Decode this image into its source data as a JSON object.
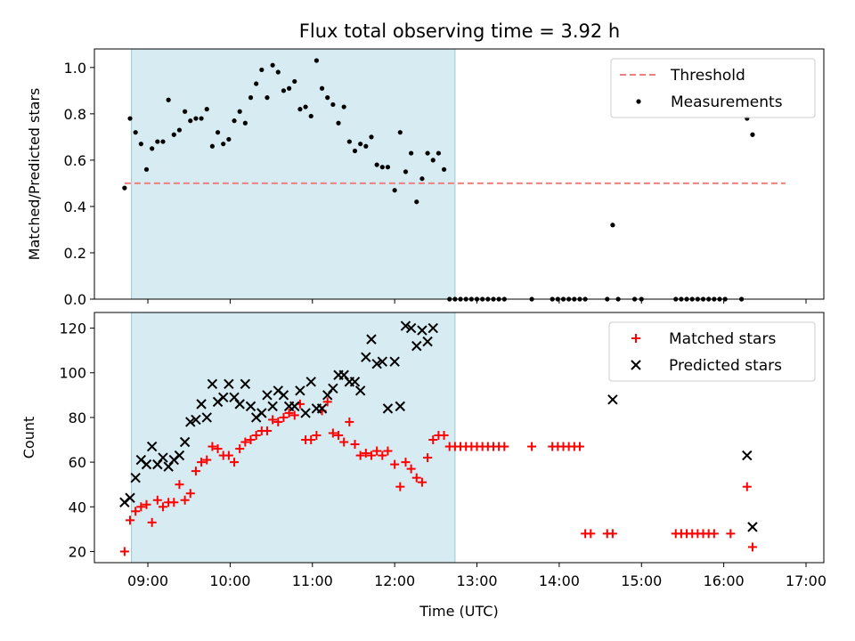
{
  "chart_data": [
    {
      "type": "scatter",
      "title": "Flux total observing time = 3.92 h",
      "xlabel": "",
      "ylabel": "Matched/Predicted stars",
      "ylim": [
        0,
        1.08
      ],
      "yticks": [
        "0.0",
        "0.2",
        "0.4",
        "0.6",
        "0.8",
        "1.0"
      ],
      "legend": "top-right",
      "shaded_interval": [
        "08:48",
        "12:44"
      ],
      "threshold": {
        "name": "Threshold",
        "value": 0.5,
        "x_range": [
          "08:43",
          "16:45"
        ],
        "color": "#f08080"
      },
      "series": [
        {
          "name": "Measurements",
          "color": "#000000",
          "points": [
            [
              "08:43",
              0.48
            ],
            [
              "08:47",
              0.78
            ],
            [
              "08:51",
              0.72
            ],
            [
              "08:55",
              0.67
            ],
            [
              "08:59",
              0.56
            ],
            [
              "09:03",
              0.65
            ],
            [
              "09:07",
              0.68
            ],
            [
              "09:11",
              0.68
            ],
            [
              "09:15",
              0.86
            ],
            [
              "09:19",
              0.71
            ],
            [
              "09:23",
              0.73
            ],
            [
              "09:27",
              0.81
            ],
            [
              "09:31",
              0.77
            ],
            [
              "09:35",
              0.78
            ],
            [
              "09:39",
              0.78
            ],
            [
              "09:43",
              0.82
            ],
            [
              "09:47",
              0.66
            ],
            [
              "09:51",
              0.72
            ],
            [
              "09:55",
              0.67
            ],
            [
              "09:59",
              0.69
            ],
            [
              "10:03",
              0.77
            ],
            [
              "10:07",
              0.81
            ],
            [
              "10:11",
              0.76
            ],
            [
              "10:15",
              0.87
            ],
            [
              "10:19",
              0.93
            ],
            [
              "10:23",
              0.99
            ],
            [
              "10:27",
              0.87
            ],
            [
              "10:31",
              1.01
            ],
            [
              "10:35",
              0.98
            ],
            [
              "10:39",
              0.9
            ],
            [
              "10:43",
              0.91
            ],
            [
              "10:47",
              0.94
            ],
            [
              "10:51",
              0.82
            ],
            [
              "10:55",
              0.83
            ],
            [
              "10:59",
              0.79
            ],
            [
              "11:03",
              1.03
            ],
            [
              "11:07",
              0.91
            ],
            [
              "11:11",
              0.87
            ],
            [
              "11:15",
              0.84
            ],
            [
              "11:19",
              0.76
            ],
            [
              "11:23",
              0.83
            ],
            [
              "11:27",
              0.68
            ],
            [
              "11:31",
              0.64
            ],
            [
              "11:35",
              0.67
            ],
            [
              "11:39",
              0.66
            ],
            [
              "11:43",
              0.7
            ],
            [
              "11:47",
              0.58
            ],
            [
              "11:51",
              0.57
            ],
            [
              "11:55",
              0.57
            ],
            [
              "12:00",
              0.47
            ],
            [
              "12:04",
              0.72
            ],
            [
              "12:08",
              0.55
            ],
            [
              "12:12",
              0.63
            ],
            [
              "12:16",
              0.42
            ],
            [
              "12:20",
              0.52
            ],
            [
              "12:24",
              0.63
            ],
            [
              "12:28",
              0.6
            ],
            [
              "12:32",
              0.63
            ],
            [
              "12:36",
              0.56
            ],
            [
              "12:40",
              0.0
            ],
            [
              "12:44",
              0.0
            ],
            [
              "12:48",
              0.0
            ],
            [
              "12:52",
              0.0
            ],
            [
              "12:56",
              0.0
            ],
            [
              "13:00",
              0.0
            ],
            [
              "13:04",
              0.0
            ],
            [
              "13:08",
              0.0
            ],
            [
              "13:12",
              0.0
            ],
            [
              "13:16",
              0.0
            ],
            [
              "13:20",
              0.0
            ],
            [
              "13:40",
              0.0
            ],
            [
              "13:55",
              0.0
            ],
            [
              "13:59",
              0.0
            ],
            [
              "14:03",
              0.0
            ],
            [
              "14:07",
              0.0
            ],
            [
              "14:11",
              0.0
            ],
            [
              "14:15",
              0.0
            ],
            [
              "14:19",
              0.0
            ],
            [
              "14:35",
              0.0
            ],
            [
              "14:39",
              0.32
            ],
            [
              "14:43",
              0.0
            ],
            [
              "14:55",
              0.0
            ],
            [
              "15:00",
              0.0
            ],
            [
              "15:25",
              0.0
            ],
            [
              "15:29",
              0.0
            ],
            [
              "15:33",
              0.0
            ],
            [
              "15:37",
              0.0
            ],
            [
              "15:41",
              0.0
            ],
            [
              "15:45",
              0.0
            ],
            [
              "15:49",
              0.0
            ],
            [
              "15:53",
              0.0
            ],
            [
              "15:57",
              0.0
            ],
            [
              "16:01",
              0.0
            ],
            [
              "16:13",
              0.0
            ],
            [
              "16:17",
              0.78
            ],
            [
              "16:21",
              0.71
            ]
          ]
        }
      ]
    },
    {
      "type": "scatter",
      "title": "",
      "xlabel": "Time (UTC)",
      "ylabel": "Count",
      "ylim": [
        15,
        127
      ],
      "yticks": [
        "20",
        "40",
        "60",
        "80",
        "100",
        "120"
      ],
      "xticks": [
        "09:00",
        "10:00",
        "11:00",
        "12:00",
        "13:00",
        "14:00",
        "15:00",
        "16:00",
        "17:00"
      ],
      "legend": "top-right",
      "shaded_interval": [
        "08:48",
        "12:44"
      ],
      "series": [
        {
          "name": "Matched stars",
          "color": "#ff0000",
          "marker": "plus",
          "points": [
            [
              "08:43",
              20
            ],
            [
              "08:47",
              34
            ],
            [
              "08:51",
              38
            ],
            [
              "08:55",
              40
            ],
            [
              "08:59",
              41
            ],
            [
              "09:03",
              33
            ],
            [
              "09:07",
              43
            ],
            [
              "09:11",
              40
            ],
            [
              "09:15",
              42
            ],
            [
              "09:19",
              42
            ],
            [
              "09:23",
              50
            ],
            [
              "09:27",
              43
            ],
            [
              "09:31",
              46
            ],
            [
              "09:35",
              56
            ],
            [
              "09:39",
              60
            ],
            [
              "09:43",
              61
            ],
            [
              "09:47",
              67
            ],
            [
              "09:51",
              66
            ],
            [
              "09:55",
              63
            ],
            [
              "09:59",
              63
            ],
            [
              "10:03",
              60
            ],
            [
              "10:07",
              66
            ],
            [
              "10:11",
              69
            ],
            [
              "10:15",
              70
            ],
            [
              "10:19",
              72
            ],
            [
              "10:23",
              74
            ],
            [
              "10:27",
              74
            ],
            [
              "10:31",
              79
            ],
            [
              "10:35",
              78
            ],
            [
              "10:39",
              80
            ],
            [
              "10:43",
              82
            ],
            [
              "10:47",
              81
            ],
            [
              "10:51",
              86
            ],
            [
              "10:55",
              70
            ],
            [
              "10:59",
              70
            ],
            [
              "11:03",
              72
            ],
            [
              "11:07",
              83
            ],
            [
              "11:11",
              87
            ],
            [
              "11:15",
              73
            ],
            [
              "11:19",
              72
            ],
            [
              "11:23",
              69
            ],
            [
              "11:27",
              78
            ],
            [
              "11:31",
              68
            ],
            [
              "11:35",
              63
            ],
            [
              "11:39",
              64
            ],
            [
              "11:43",
              63
            ],
            [
              "11:47",
              65
            ],
            [
              "11:51",
              63
            ],
            [
              "11:55",
              65
            ],
            [
              "12:00",
              59
            ],
            [
              "12:04",
              49
            ],
            [
              "12:08",
              60
            ],
            [
              "12:12",
              57
            ],
            [
              "12:16",
              53
            ],
            [
              "12:20",
              51
            ],
            [
              "12:24",
              62
            ],
            [
              "12:28",
              70
            ],
            [
              "12:32",
              72
            ],
            [
              "12:36",
              72
            ],
            [
              "12:40",
              67
            ],
            [
              "12:44",
              67
            ],
            [
              "12:48",
              67
            ],
            [
              "12:52",
              67
            ],
            [
              "12:56",
              67
            ],
            [
              "13:00",
              67
            ],
            [
              "13:04",
              67
            ],
            [
              "13:08",
              67
            ],
            [
              "13:12",
              67
            ],
            [
              "13:16",
              67
            ],
            [
              "13:20",
              67
            ],
            [
              "13:40",
              67
            ],
            [
              "13:55",
              67
            ],
            [
              "13:59",
              67
            ],
            [
              "14:03",
              67
            ],
            [
              "14:07",
              67
            ],
            [
              "14:11",
              67
            ],
            [
              "14:15",
              67
            ],
            [
              "14:19",
              28
            ],
            [
              "14:23",
              28
            ],
            [
              "14:35",
              28
            ],
            [
              "14:39",
              28
            ],
            [
              "15:25",
              28
            ],
            [
              "15:29",
              28
            ],
            [
              "15:33",
              28
            ],
            [
              "15:37",
              28
            ],
            [
              "15:41",
              28
            ],
            [
              "15:45",
              28
            ],
            [
              "15:49",
              28
            ],
            [
              "15:53",
              28
            ],
            [
              "16:05",
              28
            ],
            [
              "16:17",
              49
            ],
            [
              "16:21",
              22
            ]
          ]
        },
        {
          "name": "Predicted stars",
          "color": "#000000",
          "marker": "x",
          "points": [
            [
              "08:43",
              42
            ],
            [
              "08:47",
              44
            ],
            [
              "08:51",
              53
            ],
            [
              "08:55",
              61
            ],
            [
              "08:59",
              59
            ],
            [
              "09:03",
              67
            ],
            [
              "09:07",
              59
            ],
            [
              "09:11",
              62
            ],
            [
              "09:15",
              58
            ],
            [
              "09:19",
              61
            ],
            [
              "09:23",
              63
            ],
            [
              "09:27",
              69
            ],
            [
              "09:31",
              78
            ],
            [
              "09:35",
              79
            ],
            [
              "09:39",
              86
            ],
            [
              "09:43",
              80
            ],
            [
              "09:47",
              95
            ],
            [
              "09:51",
              87
            ],
            [
              "09:55",
              89
            ],
            [
              "09:59",
              95
            ],
            [
              "10:03",
              89
            ],
            [
              "10:07",
              86
            ],
            [
              "10:11",
              95
            ],
            [
              "10:15",
              85
            ],
            [
              "10:19",
              80
            ],
            [
              "10:23",
              82
            ],
            [
              "10:27",
              90
            ],
            [
              "10:31",
              85
            ],
            [
              "10:35",
              92
            ],
            [
              "10:39",
              90
            ],
            [
              "10:43",
              85
            ],
            [
              "10:47",
              85
            ],
            [
              "10:51",
              92
            ],
            [
              "10:55",
              82
            ],
            [
              "10:59",
              96
            ],
            [
              "11:03",
              84
            ],
            [
              "11:07",
              84
            ],
            [
              "11:11",
              90
            ],
            [
              "11:15",
              93
            ],
            [
              "11:19",
              99
            ],
            [
              "11:23",
              99
            ],
            [
              "11:27",
              96
            ],
            [
              "11:31",
              96
            ],
            [
              "11:35",
              92
            ],
            [
              "11:39",
              107
            ],
            [
              "11:43",
              115
            ],
            [
              "11:47",
              104
            ],
            [
              "11:51",
              105
            ],
            [
              "11:55",
              84
            ],
            [
              "12:00",
              105
            ],
            [
              "12:04",
              85
            ],
            [
              "12:08",
              121
            ],
            [
              "12:12",
              120
            ],
            [
              "12:16",
              112
            ],
            [
              "12:20",
              119
            ],
            [
              "12:24",
              114
            ],
            [
              "12:28",
              120
            ],
            [
              "14:39",
              88
            ],
            [
              "16:17",
              63
            ],
            [
              "16:21",
              31
            ]
          ]
        }
      ]
    }
  ]
}
